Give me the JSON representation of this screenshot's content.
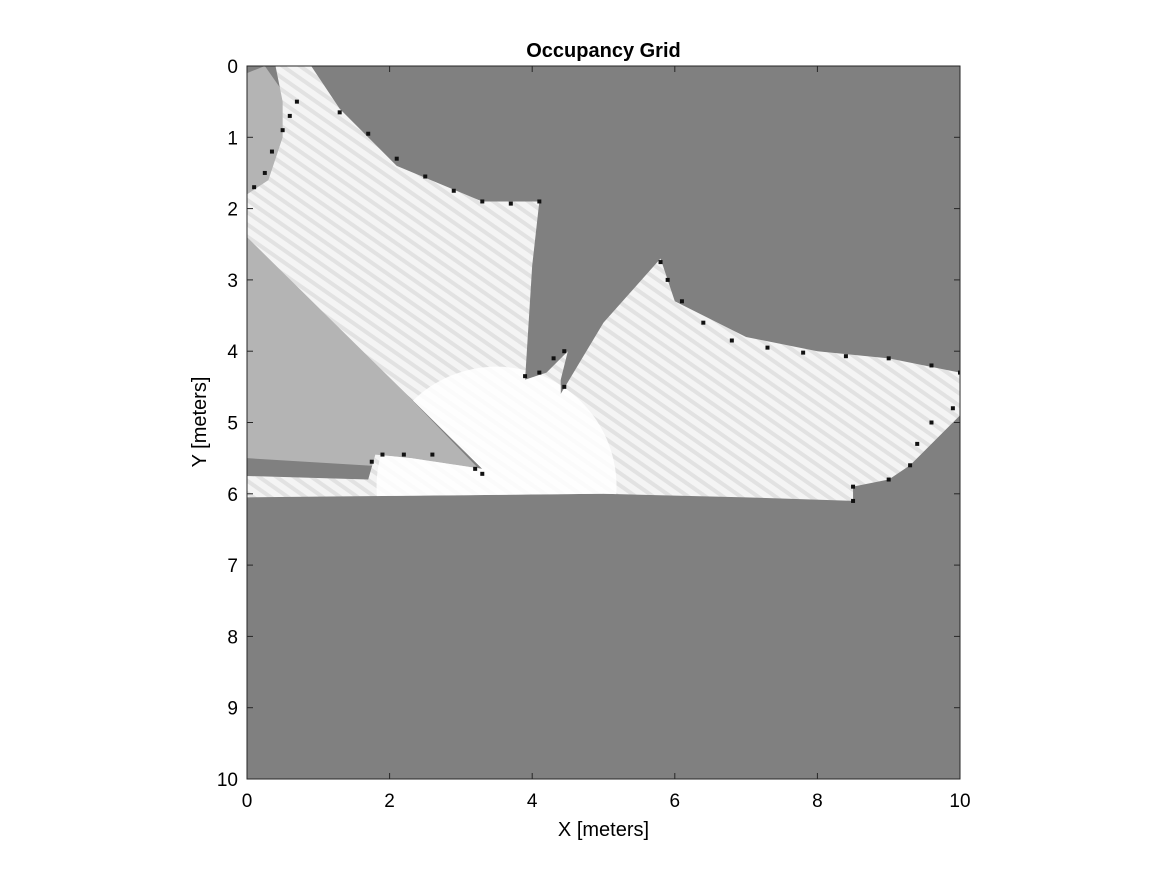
{
  "chart_data": {
    "type": "heatmap",
    "title": "Occupancy Grid",
    "xlabel": "X [meters]",
    "ylabel": "Y [meters]",
    "xlim": [
      0,
      10
    ],
    "ylim": [
      0,
      10
    ],
    "y_direction": "reversed",
    "xticks": [
      "0",
      "2",
      "4",
      "6",
      "8",
      "10"
    ],
    "yticks": [
      "0",
      "1",
      "2",
      "3",
      "4",
      "5",
      "6",
      "7",
      "8",
      "9",
      "10"
    ],
    "colormap": "gray",
    "colors": {
      "unknown": "#808080",
      "free": "#ffffff",
      "partial_free": "#cccccc",
      "occupied": "#111111"
    },
    "sensor_origin": [
      3.5,
      5.9
    ],
    "free_regions": [
      {
        "level": "light",
        "polygon": [
          [
            0.4,
            0
          ],
          [
            0.9,
            0
          ],
          [
            1.3,
            0.6
          ],
          [
            2.1,
            1.4
          ],
          [
            3.3,
            1.9
          ],
          [
            4.1,
            1.9
          ],
          [
            4.0,
            2.8
          ],
          [
            3.9,
            4.4
          ],
          [
            4.2,
            4.3
          ],
          [
            4.5,
            4.0
          ],
          [
            4.4,
            4.4
          ],
          [
            4.4,
            4.6
          ],
          [
            5.0,
            3.6
          ],
          [
            5.8,
            2.7
          ],
          [
            6.0,
            3.3
          ],
          [
            7.0,
            3.8
          ],
          [
            8.0,
            4.0
          ],
          [
            9.0,
            4.1
          ],
          [
            10.0,
            4.3
          ],
          [
            10.0,
            4.9
          ],
          [
            9.6,
            5.3
          ],
          [
            9.3,
            5.6
          ],
          [
            9.0,
            5.8
          ],
          [
            8.5,
            5.9
          ],
          [
            8.5,
            6.1
          ],
          [
            7.0,
            6.05
          ],
          [
            5.0,
            6.0
          ],
          [
            3.0,
            6.02
          ],
          [
            0.0,
            6.05
          ],
          [
            0.0,
            5.75
          ],
          [
            1.7,
            5.8
          ],
          [
            1.8,
            5.45
          ],
          [
            2.3,
            5.5
          ],
          [
            3.3,
            5.65
          ],
          [
            0.0,
            2.4
          ],
          [
            0.0,
            1.8
          ],
          [
            0.3,
            1.6
          ],
          [
            0.5,
            1.0
          ],
          [
            0.5,
            0.5
          ]
        ]
      },
      {
        "level": "mid",
        "polygon": [
          [
            0.0,
            0.1
          ],
          [
            0.25,
            0.0
          ],
          [
            0.6,
            0.5
          ],
          [
            0.5,
            1.2
          ],
          [
            0.3,
            1.7
          ],
          [
            0.0,
            1.85
          ]
        ]
      },
      {
        "level": "mid",
        "polygon": [
          [
            0.0,
            2.3
          ],
          [
            3.3,
            5.7
          ],
          [
            0.0,
            5.5
          ]
        ]
      }
    ],
    "occupied_cells": [
      [
        0.7,
        0.5
      ],
      [
        0.6,
        0.7
      ],
      [
        0.5,
        0.9
      ],
      [
        0.35,
        1.2
      ],
      [
        0.25,
        1.5
      ],
      [
        0.1,
        1.7
      ],
      [
        1.3,
        0.65
      ],
      [
        1.7,
        0.95
      ],
      [
        2.1,
        1.3
      ],
      [
        2.5,
        1.55
      ],
      [
        2.9,
        1.75
      ],
      [
        3.3,
        1.9
      ],
      [
        3.7,
        1.93
      ],
      [
        4.1,
        1.9
      ],
      [
        3.9,
        4.35
      ],
      [
        4.1,
        4.3
      ],
      [
        4.3,
        4.1
      ],
      [
        4.45,
        4.0
      ],
      [
        4.45,
        4.5
      ],
      [
        5.8,
        2.75
      ],
      [
        5.9,
        3.0
      ],
      [
        6.1,
        3.3
      ],
      [
        6.4,
        3.6
      ],
      [
        6.8,
        3.85
      ],
      [
        7.3,
        3.95
      ],
      [
        7.8,
        4.02
      ],
      [
        8.4,
        4.07
      ],
      [
        9.0,
        4.1
      ],
      [
        9.6,
        4.2
      ],
      [
        10.0,
        4.3
      ],
      [
        9.9,
        4.8
      ],
      [
        9.6,
        5.0
      ],
      [
        9.4,
        5.3
      ],
      [
        9.3,
        5.6
      ],
      [
        9.0,
        5.8
      ],
      [
        8.5,
        5.9
      ],
      [
        8.5,
        6.1
      ],
      [
        1.75,
        5.55
      ],
      [
        1.9,
        5.45
      ],
      [
        2.2,
        5.45
      ],
      [
        2.6,
        5.45
      ],
      [
        3.2,
        5.65
      ],
      [
        3.3,
        5.72
      ]
    ]
  }
}
